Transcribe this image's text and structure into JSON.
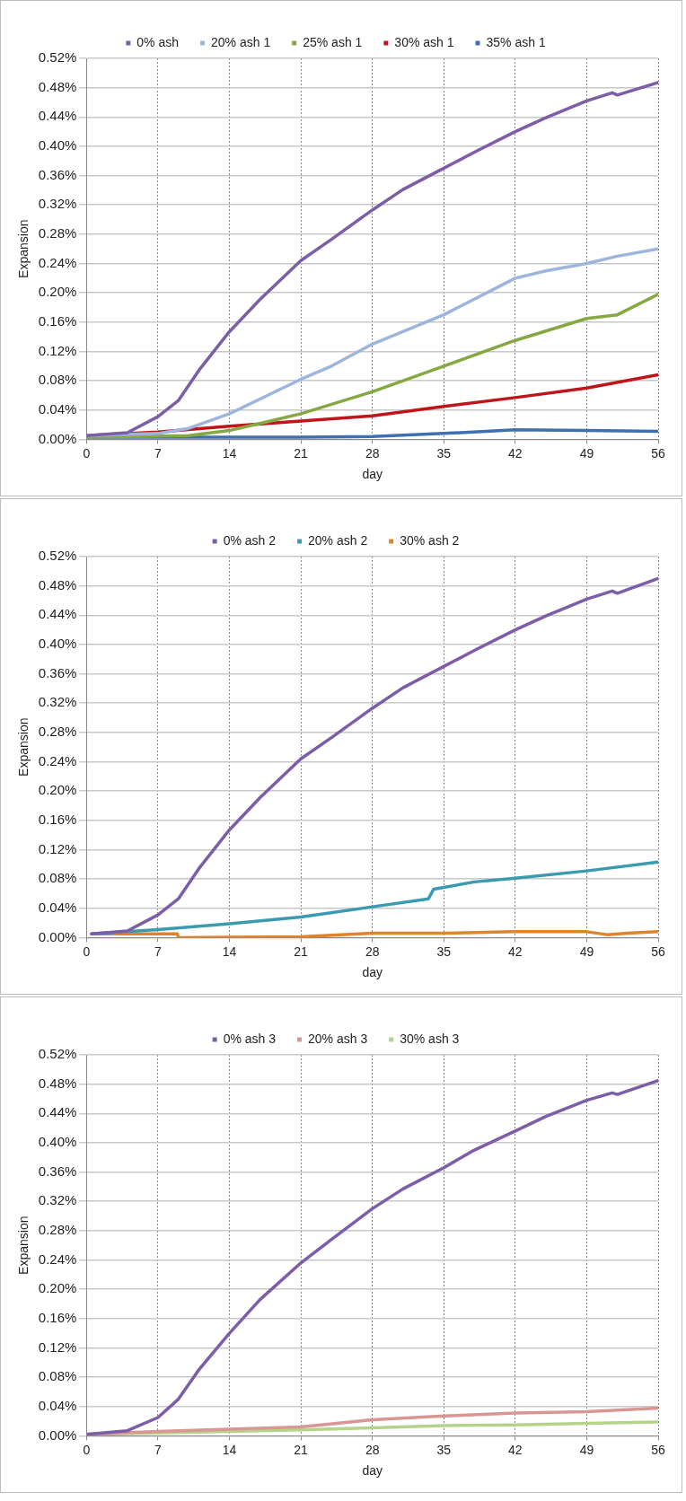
{
  "chart_data": [
    {
      "type": "line",
      "xlabel": "day",
      "ylabel": "Expansion",
      "legend": "top",
      "grid": true,
      "marker": "none",
      "xlim": [
        0,
        56
      ],
      "xticks": [
        0,
        7,
        14,
        21,
        28,
        35,
        42,
        49,
        56
      ],
      "ylim": [
        0,
        0.52
      ],
      "yticks": [
        {
          "value": 0,
          "label": "0.00%"
        },
        {
          "value": 0.04,
          "label": "0.04%"
        },
        {
          "value": 0.08,
          "label": "0.08%"
        },
        {
          "value": 0.12,
          "label": "0.12%"
        },
        {
          "value": 0.16,
          "label": "0.16%"
        },
        {
          "value": 0.2,
          "label": "0.20%"
        },
        {
          "value": 0.24,
          "label": "0.24%"
        },
        {
          "value": 0.28,
          "label": "0.28%"
        },
        {
          "value": 0.32,
          "label": "0.32%"
        },
        {
          "value": 0.36,
          "label": "0.36%"
        },
        {
          "value": 0.4,
          "label": "0.40%"
        },
        {
          "value": 0.44,
          "label": "0.44%"
        },
        {
          "value": 0.48,
          "label": "0.48%"
        },
        {
          "value": 0.52,
          "label": "0.52%"
        }
      ],
      "series": [
        {
          "name": "0% ash",
          "color": "#7b5ea7",
          "x": [
            0,
            4,
            7,
            9,
            11,
            14,
            17,
            21,
            24,
            28,
            31,
            35,
            38,
            42,
            45,
            49,
            51.5,
            52,
            56
          ],
          "values": [
            0.005,
            0.009,
            0.031,
            0.053,
            0.094,
            0.147,
            0.191,
            0.244,
            0.273,
            0.313,
            0.341,
            0.37,
            0.392,
            0.42,
            0.439,
            0.462,
            0.473,
            0.47,
            0.487
          ]
        },
        {
          "name": "20% ash 1",
          "color": "#9db4dc",
          "x": [
            0,
            7,
            10,
            14,
            17,
            21,
            24,
            28,
            35,
            42,
            45,
            49,
            52,
            56
          ],
          "values": [
            0.005,
            0.008,
            0.015,
            0.035,
            0.055,
            0.082,
            0.1,
            0.13,
            0.17,
            0.22,
            0.23,
            0.24,
            0.25,
            0.26
          ]
        },
        {
          "name": "25% ash 1",
          "color": "#86a843",
          "x": [
            0,
            10,
            14,
            18,
            21,
            28,
            35,
            42,
            49,
            52,
            56
          ],
          "values": [
            0.003,
            0.005,
            0.012,
            0.025,
            0.035,
            0.065,
            0.1,
            0.135,
            0.165,
            0.17,
            0.198
          ]
        },
        {
          "name": "30% ash 1",
          "color": "#c0141b",
          "x": [
            0,
            7,
            14,
            21,
            28,
            35,
            42,
            49,
            56
          ],
          "values": [
            0.005,
            0.01,
            0.018,
            0.025,
            0.032,
            0.045,
            0.057,
            0.07,
            0.088
          ]
        },
        {
          "name": "35% ash 1",
          "color": "#3e6fb0",
          "x": [
            0,
            7,
            14,
            21,
            28,
            35,
            42,
            49,
            56
          ],
          "values": [
            0.003,
            0.003,
            0.003,
            0.003,
            0.004,
            0.008,
            0.013,
            0.012,
            0.011
          ]
        }
      ]
    },
    {
      "type": "line",
      "xlabel": "day",
      "ylabel": "Expansion",
      "legend": "top",
      "grid": true,
      "marker": "none",
      "xlim": [
        0,
        56
      ],
      "xticks": [
        0,
        7,
        14,
        21,
        28,
        35,
        42,
        49,
        56
      ],
      "ylim": [
        0,
        0.52
      ],
      "yticks": [
        {
          "value": 0,
          "label": "0.00%"
        },
        {
          "value": 0.04,
          "label": "0.04%"
        },
        {
          "value": 0.08,
          "label": "0.08%"
        },
        {
          "value": 0.12,
          "label": "0.12%"
        },
        {
          "value": 0.16,
          "label": "0.16%"
        },
        {
          "value": 0.2,
          "label": "0.20%"
        },
        {
          "value": 0.24,
          "label": "0.24%"
        },
        {
          "value": 0.28,
          "label": "0.28%"
        },
        {
          "value": 0.32,
          "label": "0.32%"
        },
        {
          "value": 0.36,
          "label": "0.36%"
        },
        {
          "value": 0.4,
          "label": "0.40%"
        },
        {
          "value": 0.44,
          "label": "0.44%"
        },
        {
          "value": 0.48,
          "label": "0.48%"
        },
        {
          "value": 0.52,
          "label": "0.52%"
        }
      ],
      "series": [
        {
          "name": "0% ash 2",
          "color": "#7b5ea7",
          "x": [
            0.5,
            4,
            7,
            9,
            11,
            14,
            17,
            21,
            24,
            28,
            31,
            35,
            38,
            42,
            45,
            49,
            51.5,
            52,
            56
          ],
          "values": [
            0.005,
            0.009,
            0.031,
            0.053,
            0.094,
            0.147,
            0.191,
            0.244,
            0.273,
            0.313,
            0.341,
            0.37,
            0.392,
            0.42,
            0.439,
            0.462,
            0.473,
            0.47,
            0.49
          ]
        },
        {
          "name": "20% ash 2",
          "color": "#3a9bb0",
          "x": [
            0.5,
            7,
            14,
            21,
            28,
            33.5,
            34,
            38,
            42,
            49,
            56
          ],
          "values": [
            0.005,
            0.011,
            0.019,
            0.028,
            0.042,
            0.053,
            0.066,
            0.076,
            0.081,
            0.091,
            0.103
          ]
        },
        {
          "name": "30% ash 2",
          "color": "#e0842c",
          "x": [
            0.5,
            8.9,
            9,
            21,
            28,
            35,
            42,
            49,
            51,
            53,
            56
          ],
          "values": [
            0.005,
            0.005,
            0.0,
            0.001,
            0.006,
            0.006,
            0.008,
            0.008,
            0.004,
            0.006,
            0.008
          ]
        }
      ]
    },
    {
      "type": "line",
      "xlabel": "day",
      "ylabel": "Expansion",
      "legend": "top",
      "grid": true,
      "marker": "none",
      "xlim": [
        0,
        56
      ],
      "xticks": [
        0,
        7,
        14,
        21,
        28,
        35,
        42,
        49,
        56
      ],
      "ylim": [
        0,
        0.52
      ],
      "yticks": [
        {
          "value": 0,
          "label": "0.00%"
        },
        {
          "value": 0.04,
          "label": "0.04%"
        },
        {
          "value": 0.08,
          "label": "0.08%"
        },
        {
          "value": 0.12,
          "label": "0.12%"
        },
        {
          "value": 0.16,
          "label": "0.16%"
        },
        {
          "value": 0.2,
          "label": "0.20%"
        },
        {
          "value": 0.24,
          "label": "0.24%"
        },
        {
          "value": 0.28,
          "label": "0.28%"
        },
        {
          "value": 0.32,
          "label": "0.32%"
        },
        {
          "value": 0.36,
          "label": "0.36%"
        },
        {
          "value": 0.4,
          "label": "0.40%"
        },
        {
          "value": 0.44,
          "label": "0.44%"
        },
        {
          "value": 0.48,
          "label": "0.48%"
        },
        {
          "value": 0.52,
          "label": "0.52%"
        }
      ],
      "series": [
        {
          "name": "0% ash 3",
          "color": "#7b5ea7",
          "x": [
            0,
            4,
            7,
            9,
            11,
            14,
            17,
            21,
            24,
            28,
            31,
            35,
            38,
            42,
            45,
            49,
            51.5,
            52,
            56
          ],
          "values": [
            0.002,
            0.007,
            0.025,
            0.05,
            0.09,
            0.14,
            0.186,
            0.236,
            0.268,
            0.31,
            0.337,
            0.366,
            0.39,
            0.416,
            0.436,
            0.458,
            0.468,
            0.466,
            0.485
          ]
        },
        {
          "name": "20% ash 3",
          "color": "#d99694",
          "x": [
            0,
            7,
            14,
            21,
            28,
            35,
            42,
            49,
            56
          ],
          "values": [
            0.002,
            0.006,
            0.009,
            0.012,
            0.022,
            0.027,
            0.031,
            0.033,
            0.038
          ]
        },
        {
          "name": "30% ash 3",
          "color": "#b4d48a",
          "x": [
            0,
            7,
            14,
            21,
            28,
            35,
            42,
            49,
            56
          ],
          "values": [
            0.002,
            0.004,
            0.006,
            0.008,
            0.011,
            0.014,
            0.015,
            0.017,
            0.019
          ]
        }
      ]
    }
  ]
}
